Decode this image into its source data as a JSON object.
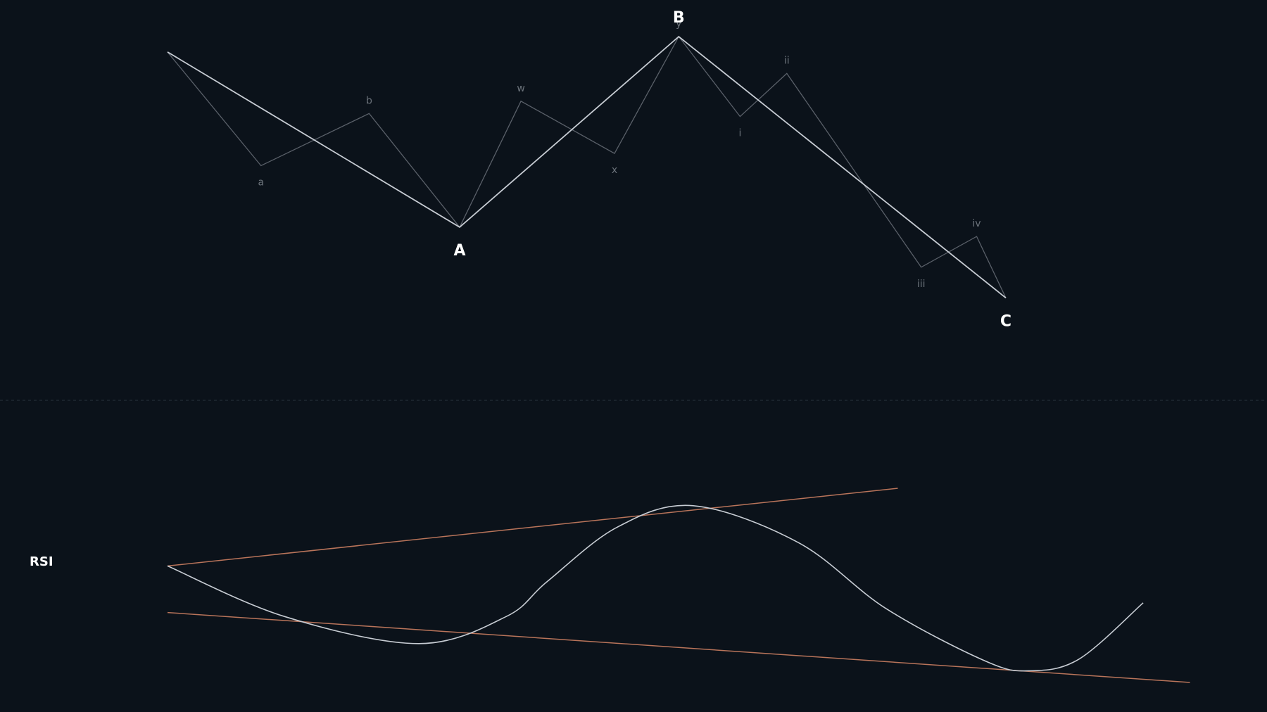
{
  "chart_data": [
    {
      "type": "line",
      "title": "",
      "xlabel": "",
      "ylabel": "",
      "grid": false,
      "series": [
        {
          "role": "major-waves",
          "color": "#c7ccd3",
          "points": [
            {
              "x": 0,
              "y": 0.95
            },
            {
              "x": 10,
              "y": 0.38,
              "label": "A"
            },
            {
              "x": 17.5,
              "y": 1.0,
              "label": "B"
            },
            {
              "x": 28.7,
              "y": 0.15,
              "label": "C"
            }
          ]
        },
        {
          "role": "minor-waves",
          "color": "#5a6069",
          "points": [
            {
              "x": 0,
              "y": 0.95
            },
            {
              "x": 3.2,
              "y": 0.58,
              "label": "a"
            },
            {
              "x": 6.9,
              "y": 0.75,
              "label": "b"
            },
            {
              "x": 10,
              "y": 0.38
            },
            {
              "x": 12.1,
              "y": 0.79,
              "label": "w"
            },
            {
              "x": 15.3,
              "y": 0.62,
              "label": "x"
            },
            {
              "x": 17.5,
              "y": 1.0,
              "label": "y"
            },
            {
              "x": 19.6,
              "y": 0.74,
              "label": "i"
            },
            {
              "x": 21.2,
              "y": 0.88,
              "label": "ii"
            },
            {
              "x": 25.8,
              "y": 0.25,
              "label": "iii"
            },
            {
              "x": 27.7,
              "y": 0.35,
              "label": "iv"
            },
            {
              "x": 28.7,
              "y": 0.15
            }
          ]
        }
      ]
    },
    {
      "type": "line",
      "title": "",
      "panel_label": "RSI",
      "xlabel": "",
      "ylabel": "",
      "grid": false,
      "series": [
        {
          "role": "rsi",
          "color": "#c7ccd3",
          "points": [
            {
              "x": 0,
              "y": 0.6
            },
            {
              "x": 4,
              "y": 0.34
            },
            {
              "x": 8.6,
              "y": 0.2
            },
            {
              "x": 11.6,
              "y": 0.34
            },
            {
              "x": 13,
              "y": 0.52
            },
            {
              "x": 15.4,
              "y": 0.8
            },
            {
              "x": 18,
              "y": 0.91
            },
            {
              "x": 21.6,
              "y": 0.72
            },
            {
              "x": 24.6,
              "y": 0.38
            },
            {
              "x": 28,
              "y": 0.11
            },
            {
              "x": 29.5,
              "y": 0.06
            },
            {
              "x": 31.2,
              "y": 0.12
            },
            {
              "x": 33.4,
              "y": 0.41
            }
          ]
        },
        {
          "role": "upper-trendline",
          "color": "#b9745a",
          "points": [
            {
              "x": 0,
              "y": 0.6
            },
            {
              "x": 25,
              "y": 1.0
            }
          ]
        },
        {
          "role": "lower-trendline",
          "color": "#b9745a",
          "points": [
            {
              "x": 0,
              "y": 0.36
            },
            {
              "x": 35,
              "y": 0.0
            }
          ]
        }
      ]
    }
  ]
}
